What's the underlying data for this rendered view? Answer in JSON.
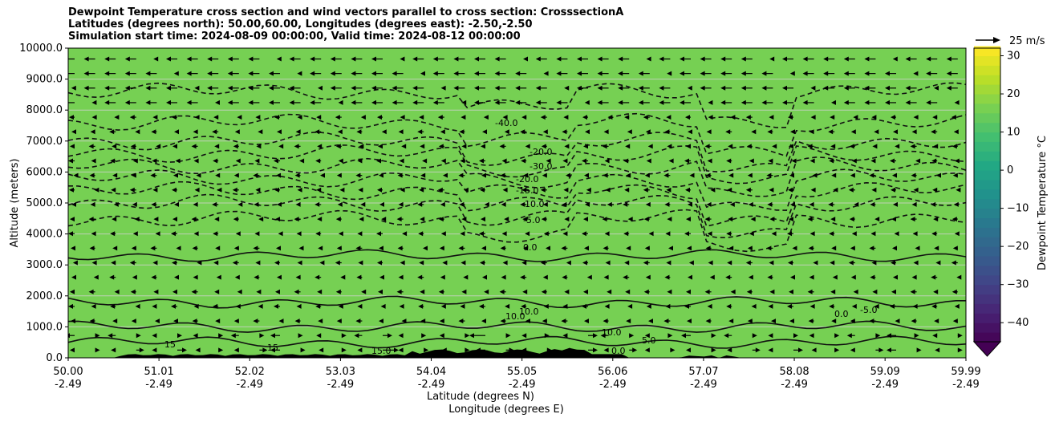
{
  "title_lines": [
    "Dewpoint Temperature cross section and wind vectors parallel to cross section: CrosssectionA",
    "Latitudes (degrees north): 50.00,60.00, Longitudes (degrees east): -2.50,-2.50",
    "Simulation start time: 2024-08-09 00:00:00, Valid time: 2024-08-12 00:00:00"
  ],
  "chart_data": {
    "type": "heatmap",
    "ylabel": "Altitude (meters)",
    "xlabel_line1": "Latitude (degrees N)",
    "xlabel_line2": "Longitude (degrees E)",
    "ylim": [
      0,
      10000
    ],
    "xlim": [
      50.0,
      59.99
    ],
    "yticks": [
      "0.0",
      "1000.0",
      "2000.0",
      "3000.0",
      "4000.0",
      "5000.0",
      "6000.0",
      "7000.0",
      "8000.0",
      "9000.0",
      "10000.0"
    ],
    "yvals": [
      0,
      1000,
      2000,
      3000,
      4000,
      5000,
      6000,
      7000,
      8000,
      9000,
      10000
    ],
    "xticks": [
      {
        "v": 50.0,
        "lat": "50.00",
        "lon": "-2.49"
      },
      {
        "v": 51.01,
        "lat": "51.01",
        "lon": "-2.49"
      },
      {
        "v": 52.02,
        "lat": "52.02",
        "lon": "-2.49"
      },
      {
        "v": 53.03,
        "lat": "53.03",
        "lon": "-2.49"
      },
      {
        "v": 54.04,
        "lat": "54.04",
        "lon": "-2.49"
      },
      {
        "v": 55.05,
        "lat": "55.05",
        "lon": "-2.49"
      },
      {
        "v": 56.06,
        "lat": "56.06",
        "lon": "-2.49"
      },
      {
        "v": 57.07,
        "lat": "57.07",
        "lon": "-2.49"
      },
      {
        "v": 58.08,
        "lat": "58.08",
        "lon": "-2.49"
      },
      {
        "v": 59.09,
        "lat": "59.09",
        "lon": "-2.49"
      },
      {
        "v": 59.99,
        "lat": "59.99",
        "lon": "-2.49"
      }
    ],
    "grid": "horizontal",
    "colorbar": {
      "label": "Dewpoint Temperature $^\\circ$C",
      "label_display": "Dewpoint Temperature °C",
      "range": [
        -45,
        32
      ],
      "ticks": [
        -40,
        -30,
        -20,
        -10,
        0,
        10,
        20,
        30
      ],
      "tick_labels": [
        "−40",
        "−30",
        "−20",
        "−10",
        "0",
        "10",
        "20",
        "30"
      ],
      "colormap": [
        "#440154",
        "#482475",
        "#414487",
        "#355f8d",
        "#2a788e",
        "#21918c",
        "#22a884",
        "#44bf70",
        "#7ad151",
        "#bddf26",
        "#fde725"
      ]
    },
    "contour_labels": [
      "-40.0",
      "-20.0",
      "-30.0",
      "-20.0",
      "-15.0",
      "-10.0",
      "-5.0",
      "0.0",
      "10.0",
      "10.0",
      "10.0",
      "15",
      "15",
      "15.0",
      "5.0",
      "0.0",
      "0.0",
      "-5.0"
    ],
    "wind_key": {
      "label": "25 m/s",
      "value": 25
    }
  }
}
